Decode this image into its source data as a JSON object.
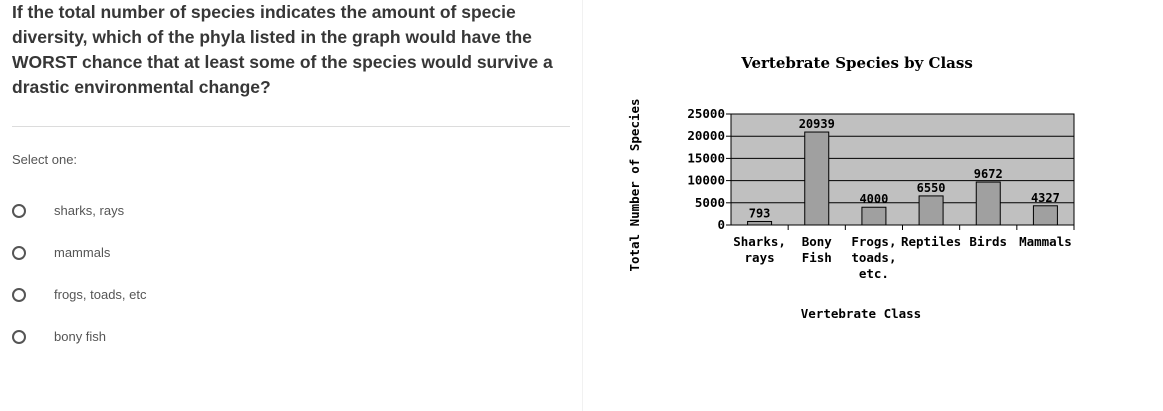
{
  "question": {
    "lines": [
      "If the total number of species indicates the amount of specie",
      "diversity, which of the phyla listed in the graph would have the",
      "WORST chance that at least some of the species would survive a",
      "drastic environmental change?"
    ]
  },
  "prompt": {
    "select_one": "Select one:"
  },
  "options": [
    {
      "label": "sharks, rays"
    },
    {
      "label": "mammals"
    },
    {
      "label": "frogs, toads, etc"
    },
    {
      "label": "bony fish"
    }
  ],
  "colors": {
    "plot_bg": "#c0c0c0",
    "bar_fill": "#a0a0a0",
    "gridline": "#000000",
    "question_text": "#373737",
    "option_text": "#555555"
  },
  "chart_data": {
    "type": "bar",
    "title": "Vertebrate Species by Class",
    "xlabel": "Vertebrate Class",
    "ylabel": "Total Number of Species",
    "ylim": [
      0,
      25000
    ],
    "yticks": [
      "0",
      "5000",
      "10000",
      "15000",
      "20000",
      "25000"
    ],
    "grid": true,
    "categories": [
      [
        "Sharks,",
        "rays"
      ],
      [
        "Bony",
        "Fish"
      ],
      [
        "Frogs,",
        "toads,",
        "etc."
      ],
      [
        "Reptiles"
      ],
      [
        "Birds"
      ],
      [
        "Mammals"
      ]
    ],
    "values": [
      793,
      20939,
      4000,
      6550,
      9672,
      4327
    ],
    "data_labels": [
      "793",
      "20939",
      "4000",
      "6550",
      "9672",
      "4327"
    ]
  }
}
